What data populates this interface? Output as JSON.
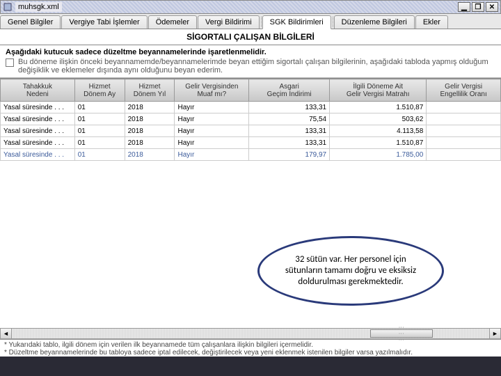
{
  "window": {
    "title": "muhsgk.xml",
    "controls": {
      "minimize": "▁",
      "maximize": "❐",
      "close": "✕"
    }
  },
  "tabs": [
    {
      "label": "Genel Bilgiler",
      "active": false
    },
    {
      "label": "Vergiye Tabi İşlemler",
      "active": false
    },
    {
      "label": "Ödemeler",
      "active": false
    },
    {
      "label": "Vergi Bildirimi",
      "active": false
    },
    {
      "label": "SGK Bildirimleri",
      "active": true
    },
    {
      "label": "Düzenleme Bilgileri",
      "active": false
    },
    {
      "label": "Ekler",
      "active": false
    }
  ],
  "section_title": "SİGORTALI ÇALIŞAN BİLGİLERİ",
  "instruction_bold": "Aşağıdaki kutucuk sadece düzeltme beyannamelerinde işaretlenmelidir.",
  "instruction_check": "Bu döneme ilişkin önceki beyannamemde/beyannamelerimde beyan ettiğim sigortalı çalışan bilgilerinin, aşağıdaki tabloda yapmış olduğum değişiklik ve eklemeler dışında aynı olduğunu beyan ederim.",
  "table": {
    "columns": [
      {
        "label": "Tahakkuk\nNedeni",
        "width": 92,
        "align": "left"
      },
      {
        "label": "Hizmet\nDönem Ay",
        "width": 62,
        "align": "left"
      },
      {
        "label": "Hizmet\nDönem Yıl",
        "width": 62,
        "align": "left"
      },
      {
        "label": "Gelir Vergisinden\nMuaf mı?",
        "width": 92,
        "align": "left"
      },
      {
        "label": "Asgari\nGeçim İndirimi",
        "width": 100,
        "align": "right"
      },
      {
        "label": "İlgili Döneme Ait\nGelir Vergisi Matrahı",
        "width": 120,
        "align": "right"
      },
      {
        "label": "Gelir Vergisi\nEngellilik Oranı",
        "width": 92,
        "align": "left"
      }
    ],
    "rows": [
      [
        "Yasal süresinde . . .",
        "01",
        "2018",
        "Hayır",
        "133,31",
        "1.510,87",
        ""
      ],
      [
        "Yasal süresinde . . .",
        "01",
        "2018",
        "Hayır",
        "75,54",
        "503,62",
        ""
      ],
      [
        "Yasal süresinde . . .",
        "01",
        "2018",
        "Hayır",
        "133,31",
        "4.113,58",
        ""
      ],
      [
        "Yasal süresinde . . .",
        "01",
        "2018",
        "Hayır",
        "133,31",
        "1.510,87",
        ""
      ],
      [
        "Yasal süresinde . . .",
        "01",
        "2018",
        "Hayır",
        "179,97",
        "1.785,00",
        ""
      ]
    ]
  },
  "callout_text": "32 sütün var. Her personel için sütunların tamamı doğru ve eksiksiz doldurulması gerekmektedir.",
  "footer_notes": [
    "* Yukarıdaki tablo, ilgili dönem için verilen ilk beyannamede tüm çalışanlara ilişkin bilgileri içermelidir.",
    "* Düzeltme beyannamelerinde bu tabloya sadece iptal edilecek, değiştirilecek veya yeni eklenmek istenilen bilgiler varsa yazılmalıdır."
  ],
  "colors": {
    "callout_border": "#2a3a7a",
    "header_grad_top": "#e8e8e8",
    "header_grad_bot": "#c8c8c8"
  }
}
